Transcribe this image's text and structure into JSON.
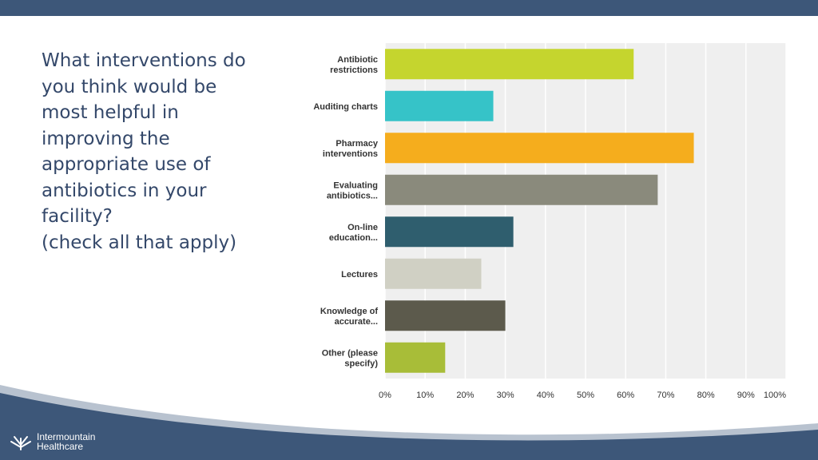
{
  "question": {
    "lines": [
      "What interventions do",
      "you think would be",
      "most helpful in",
      "improving the",
      "appropriate use of",
      "antibiotics in your",
      "facility?",
      "(check all that apply)"
    ]
  },
  "logo": {
    "line1": "Intermountain",
    "line2": "Healthcare"
  },
  "colors": {
    "header": "#3d5779",
    "footer": "#3d5779",
    "question_text": "#34486a"
  },
  "chart_data": {
    "type": "bar",
    "orientation": "horizontal",
    "categories": [
      [
        "Antibiotic",
        "restrictions"
      ],
      [
        "Auditing charts"
      ],
      [
        "Pharmacy",
        "interventions"
      ],
      [
        "Evaluating",
        "antibiotics..."
      ],
      [
        "On-line",
        "education..."
      ],
      [
        "Lectures"
      ],
      [
        "Knowledge of",
        "accurate..."
      ],
      [
        "Other (please",
        "specify)"
      ]
    ],
    "values": [
      62,
      27,
      77,
      68,
      32,
      24,
      30,
      15
    ],
    "colors": [
      "#c5d52e",
      "#36c3c8",
      "#f5ad1d",
      "#8a8a7c",
      "#2f5e6e",
      "#d0d0c4",
      "#5c5a4c",
      "#a8bd38"
    ],
    "xlim": [
      0,
      100
    ],
    "xticks": [
      "0%",
      "10%",
      "20%",
      "30%",
      "40%",
      "50%",
      "60%",
      "70%",
      "80%",
      "90%",
      "100%"
    ],
    "grid": true,
    "legend": "none"
  }
}
